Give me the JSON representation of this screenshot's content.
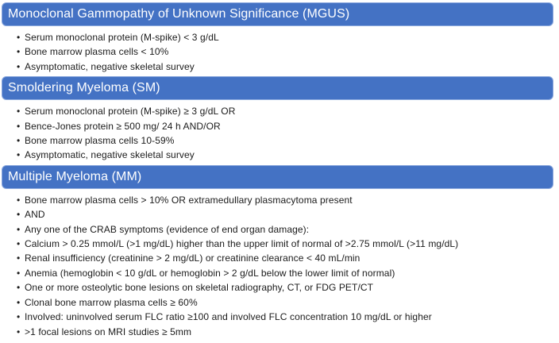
{
  "sections": [
    {
      "id": "mgus",
      "title": "Monoclonal Gammopathy of Unknown Significance (MGUS)",
      "bullets": [
        "Serum monoclonal protein (M-spike) < 3 g/dL",
        "Bone marrow plasma cells < 10%",
        "Asymptomatic, negative skeletal survey"
      ]
    },
    {
      "id": "sm",
      "title": "Smoldering Myeloma (SM)",
      "bullets": [
        "Serum monoclonal protein (M-spike) ≥ 3 g/dL OR",
        "Bence-Jones protein ≥ 500 mg/ 24 h AND/OR",
        "Bone marrow plasma cells 10-59%",
        "Asymptomatic, negative skeletal survey"
      ]
    },
    {
      "id": "mm",
      "title": "Multiple Myeloma (MM)",
      "bullets": [
        "Bone marrow plasma cells > 10% OR extramedullary plasmacytoma present",
        "AND",
        "Any one of the CRAB symptoms (evidence of end organ damage):",
        "Calcium > 0.25 mmol/L (>1 mg/dL) higher than the upper limit of normal of >2.75 mmol/L (>11 mg/dL)",
        "Renal insufficiency (creatinine > 2 mg/dL) or creatinine clearance < 40 mL/min",
        "Anemia (hemoglobin < 10 g/dL or hemoglobin > 2 g/dL below the lower limit of normal)",
        "One or more osteolytic bone lesions on skeletal radiography, CT, or FDG PET/CT",
        "Clonal bone marrow plasma cells ≥ 60%",
        "Involved: uninvolved serum FLC ratio ≥100 and involved FLC concentration 10 mg/dL or higher",
        ">1 focal lesions on MRI studies ≥ 5mm"
      ]
    }
  ],
  "colors": {
    "header_bg": "#4472C4",
    "header_border": "#8AA7DD",
    "header_text": "#FFFFFF",
    "body_text": "#1A1A1A",
    "background": "#FFFFFF"
  }
}
